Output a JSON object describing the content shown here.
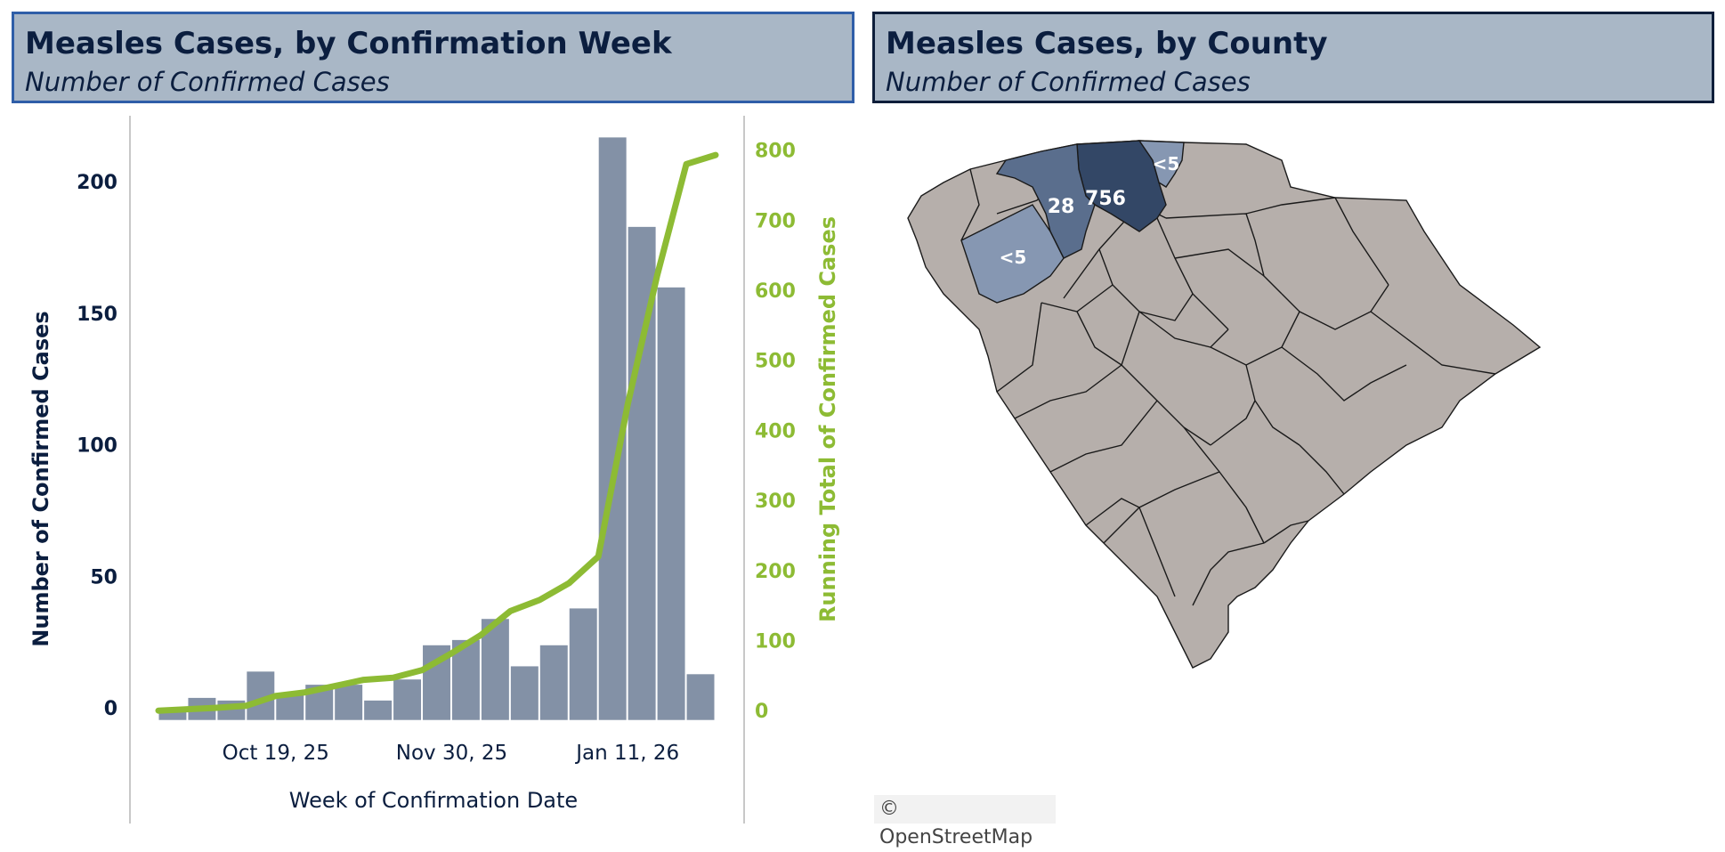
{
  "left_panel": {
    "title": "Measles Cases, by Confirmation Week",
    "subtitle": "Number of Confirmed Cases"
  },
  "right_panel": {
    "title": "Measles Cases, by County",
    "subtitle": "Number of Confirmed Cases"
  },
  "chart_data": [
    {
      "type": "bar",
      "title": "Measles Cases, by Confirmation Week",
      "subtitle": "Number of Confirmed Cases",
      "xlabel": "Week of Confirmation Date",
      "ylabel": "Number of Confirmed Cases",
      "y2label": "Running Total of Confirmed Cases",
      "x_tick_labels": [
        "Oct 19, 25",
        "Nov 30, 25",
        "Jan 11, 26"
      ],
      "y_ticks": [
        0,
        50,
        100,
        150,
        200
      ],
      "y2_ticks": [
        0,
        100,
        200,
        300,
        400,
        500,
        600,
        700,
        800
      ],
      "ylim": [
        -5,
        220
      ],
      "y2lim": [
        -15,
        830
      ],
      "bar_color": "#8391a6",
      "line_color": "#8dbb34",
      "grid": false,
      "series": [
        {
          "type": "bar",
          "values": [
            0,
            4,
            3,
            14,
            5,
            9,
            9,
            3,
            11,
            24,
            26,
            34,
            16,
            24,
            38,
            217,
            183,
            160,
            13
          ]
        },
        {
          "type": "line",
          "values": [
            0,
            4,
            7,
            21,
            26,
            35,
            44,
            47,
            58,
            82,
            108,
            142,
            158,
            182,
            220,
            437,
            620,
            780,
            793
          ]
        }
      ]
    },
    {
      "type": "map",
      "title": "Measles Cases, by County",
      "subtitle": "Number of Confirmed Cases",
      "labels": [
        "756",
        "28",
        "<5",
        "<5"
      ],
      "colors": {
        "high": "#334766",
        "mid": "#5a6e8d",
        "low": "#8697b2",
        "none": "#b6afab"
      },
      "attribution": "© OpenStreetMap"
    }
  ]
}
